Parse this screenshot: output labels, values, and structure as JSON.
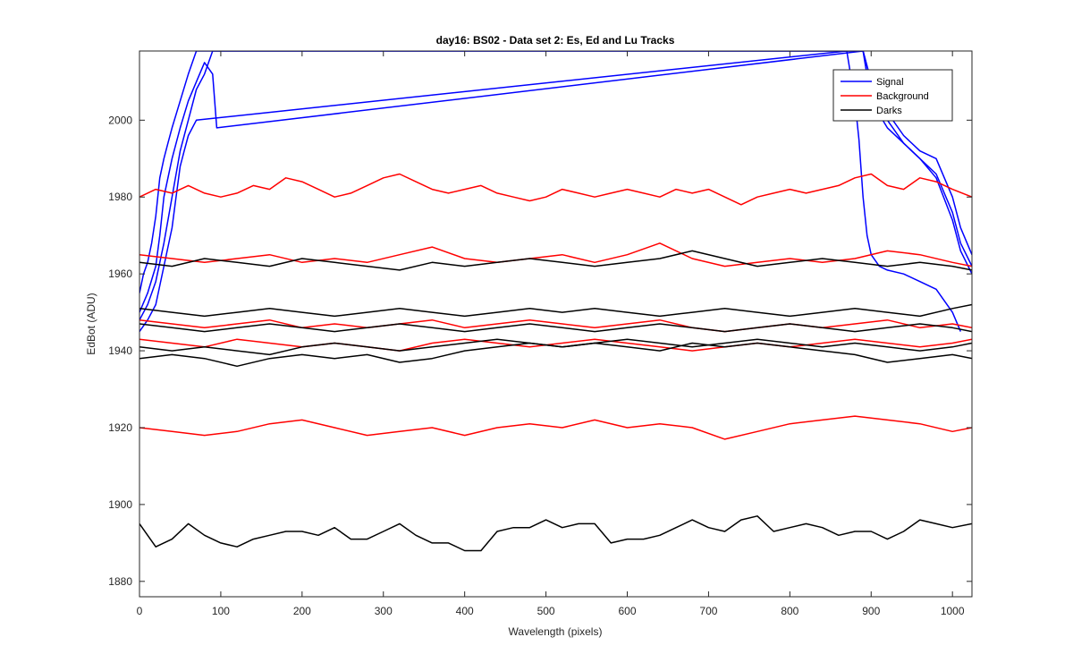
{
  "chart_data": {
    "type": "line",
    "title": "day16: BS02 - Data set 2: Es, Ed and Lu Tracks",
    "xlabel": "Wavelength (pixels)",
    "ylabel": "EdBot (ADU)",
    "xlim": [
      0,
      1024
    ],
    "ylim": [
      1876,
      2018
    ],
    "xticks": [
      0,
      100,
      200,
      300,
      400,
      500,
      600,
      700,
      800,
      900,
      1000
    ],
    "yticks": [
      1880,
      1900,
      1920,
      1940,
      1960,
      1980,
      2000
    ],
    "grid": false,
    "legend_position": "top-right",
    "legend": [
      {
        "label": "Signal",
        "color": "#0000ff"
      },
      {
        "label": "Background",
        "color": "#ff0000"
      },
      {
        "label": "Darks",
        "color": "#000000"
      }
    ],
    "series": [
      {
        "group": "Signal",
        "color": "#0000ff",
        "x": [
          0,
          5,
          10,
          15,
          20,
          25,
          30,
          35,
          40,
          50,
          60,
          70,
          80,
          90,
          100,
          150,
          870,
          880,
          890,
          900,
          920,
          940,
          960,
          980,
          1000,
          1010,
          1024
        ],
        "y": [
          1955,
          1960,
          1963,
          1968,
          1975,
          1985,
          1990,
          1994,
          1998,
          2005,
          2012,
          2018,
          2018,
          2018,
          2018,
          2018,
          2018,
          2018,
          2018,
          2010,
          2002,
          1996,
          1992,
          1990,
          1980,
          1972,
          1965
        ]
      },
      {
        "group": "Signal",
        "color": "#0000ff",
        "x": [
          0,
          10,
          20,
          25,
          30,
          40,
          50,
          60,
          70,
          80,
          90,
          95,
          890,
          900,
          920,
          940,
          960,
          980,
          1000,
          1010,
          1024
        ],
        "y": [
          1950,
          1955,
          1962,
          1970,
          1980,
          1990,
          1998,
          2005,
          2010,
          2015,
          2012,
          1998,
          2018,
          2005,
          1998,
          1994,
          1990,
          1986,
          1976,
          1968,
          1962
        ]
      },
      {
        "group": "Signal",
        "color": "#0000ff",
        "x": [
          0,
          10,
          20,
          30,
          40,
          50,
          60,
          70,
          80,
          90,
          100,
          890,
          900,
          920,
          940,
          960,
          980,
          1000,
          1010,
          1024
        ],
        "y": [
          1948,
          1952,
          1958,
          1968,
          1980,
          1992,
          2000,
          2008,
          2012,
          2018,
          2018,
          2018,
          2010,
          2000,
          1994,
          1990,
          1985,
          1974,
          1966,
          1960
        ]
      },
      {
        "group": "Signal",
        "color": "#0000ff",
        "x": [
          0,
          10,
          20,
          30,
          40,
          45,
          50,
          55,
          60,
          70,
          870,
          880,
          885,
          890,
          895,
          900,
          910,
          920,
          940,
          960,
          980,
          990,
          1000,
          1010
        ],
        "y": [
          1945,
          1948,
          1952,
          1962,
          1972,
          1980,
          1988,
          1992,
          1996,
          2000,
          2018,
          2005,
          1995,
          1980,
          1970,
          1965,
          1962,
          1961,
          1960,
          1958,
          1956,
          1953,
          1950,
          1945
        ]
      },
      {
        "group": "Background",
        "color": "#ff0000",
        "x": [
          0,
          20,
          40,
          60,
          80,
          100,
          120,
          140,
          160,
          180,
          200,
          220,
          240,
          260,
          280,
          300,
          320,
          340,
          360,
          380,
          400,
          420,
          440,
          460,
          480,
          500,
          520,
          540,
          560,
          580,
          600,
          620,
          640,
          660,
          680,
          700,
          720,
          740,
          760,
          780,
          800,
          820,
          840,
          860,
          880,
          900,
          920,
          940,
          960,
          980,
          1000,
          1024
        ],
        "y": [
          1980,
          1982,
          1981,
          1983,
          1981,
          1980,
          1981,
          1983,
          1982,
          1985,
          1984,
          1982,
          1980,
          1981,
          1983,
          1985,
          1986,
          1984,
          1982,
          1981,
          1982,
          1983,
          1981,
          1980,
          1979,
          1980,
          1982,
          1981,
          1980,
          1981,
          1982,
          1981,
          1980,
          1982,
          1981,
          1982,
          1980,
          1978,
          1980,
          1981,
          1982,
          1981,
          1982,
          1983,
          1985,
          1986,
          1983,
          1982,
          1985,
          1984,
          1982,
          1980
        ]
      },
      {
        "group": "Background",
        "color": "#ff0000",
        "x": [
          0,
          40,
          80,
          120,
          160,
          200,
          240,
          280,
          320,
          360,
          400,
          440,
          480,
          520,
          560,
          600,
          640,
          680,
          720,
          760,
          800,
          840,
          880,
          920,
          960,
          1000,
          1024
        ],
        "y": [
          1965,
          1964,
          1963,
          1964,
          1965,
          1963,
          1964,
          1963,
          1965,
          1967,
          1964,
          1963,
          1964,
          1965,
          1963,
          1965,
          1968,
          1964,
          1962,
          1963,
          1964,
          1963,
          1964,
          1966,
          1965,
          1963,
          1962
        ]
      },
      {
        "group": "Background",
        "color": "#ff0000",
        "x": [
          0,
          40,
          80,
          120,
          160,
          200,
          240,
          280,
          320,
          360,
          400,
          440,
          480,
          520,
          560,
          600,
          640,
          680,
          720,
          760,
          800,
          840,
          880,
          920,
          960,
          1000,
          1024
        ],
        "y": [
          1948,
          1947,
          1946,
          1947,
          1948,
          1946,
          1947,
          1946,
          1947,
          1948,
          1946,
          1947,
          1948,
          1947,
          1946,
          1947,
          1948,
          1946,
          1945,
          1946,
          1947,
          1946,
          1947,
          1948,
          1946,
          1947,
          1946
        ]
      },
      {
        "group": "Background",
        "color": "#ff0000",
        "x": [
          0,
          40,
          80,
          120,
          160,
          200,
          240,
          280,
          320,
          360,
          400,
          440,
          480,
          520,
          560,
          600,
          640,
          680,
          720,
          760,
          800,
          840,
          880,
          920,
          960,
          1000,
          1024
        ],
        "y": [
          1943,
          1942,
          1941,
          1943,
          1942,
          1941,
          1942,
          1941,
          1940,
          1942,
          1943,
          1942,
          1941,
          1942,
          1943,
          1942,
          1941,
          1940,
          1941,
          1942,
          1941,
          1942,
          1943,
          1942,
          1941,
          1942,
          1943
        ]
      },
      {
        "group": "Background",
        "color": "#ff0000",
        "x": [
          0,
          40,
          80,
          120,
          160,
          200,
          240,
          280,
          320,
          360,
          400,
          440,
          480,
          520,
          560,
          600,
          640,
          680,
          720,
          760,
          800,
          840,
          880,
          920,
          960,
          1000,
          1024
        ],
        "y": [
          1920,
          1919,
          1918,
          1919,
          1921,
          1922,
          1920,
          1918,
          1919,
          1920,
          1918,
          1920,
          1921,
          1920,
          1922,
          1920,
          1921,
          1920,
          1917,
          1919,
          1921,
          1922,
          1923,
          1922,
          1921,
          1919,
          1920
        ]
      },
      {
        "group": "Darks",
        "color": "#000000",
        "x": [
          0,
          40,
          80,
          120,
          160,
          200,
          240,
          280,
          320,
          360,
          400,
          440,
          480,
          520,
          560,
          600,
          640,
          680,
          720,
          760,
          800,
          840,
          880,
          920,
          960,
          1000,
          1024
        ],
        "y": [
          1963,
          1962,
          1964,
          1963,
          1962,
          1964,
          1963,
          1962,
          1961,
          1963,
          1962,
          1963,
          1964,
          1963,
          1962,
          1963,
          1964,
          1966,
          1964,
          1962,
          1963,
          1964,
          1963,
          1962,
          1963,
          1962,
          1961
        ]
      },
      {
        "group": "Darks",
        "color": "#000000",
        "x": [
          0,
          40,
          80,
          120,
          160,
          200,
          240,
          280,
          320,
          360,
          400,
          440,
          480,
          520,
          560,
          600,
          640,
          680,
          720,
          760,
          800,
          840,
          880,
          920,
          960,
          1000,
          1024
        ],
        "y": [
          1951,
          1950,
          1949,
          1950,
          1951,
          1950,
          1949,
          1950,
          1951,
          1950,
          1949,
          1950,
          1951,
          1950,
          1951,
          1950,
          1949,
          1950,
          1951,
          1950,
          1949,
          1950,
          1951,
          1950,
          1949,
          1951,
          1952
        ]
      },
      {
        "group": "Darks",
        "color": "#000000",
        "x": [
          0,
          40,
          80,
          120,
          160,
          200,
          240,
          280,
          320,
          360,
          400,
          440,
          480,
          520,
          560,
          600,
          640,
          680,
          720,
          760,
          800,
          840,
          880,
          920,
          960,
          1000,
          1024
        ],
        "y": [
          1947,
          1946,
          1945,
          1946,
          1947,
          1946,
          1945,
          1946,
          1947,
          1946,
          1945,
          1946,
          1947,
          1946,
          1945,
          1946,
          1947,
          1946,
          1945,
          1946,
          1947,
          1946,
          1945,
          1946,
          1947,
          1946,
          1945
        ]
      },
      {
        "group": "Darks",
        "color": "#000000",
        "x": [
          0,
          40,
          80,
          120,
          160,
          200,
          240,
          280,
          320,
          360,
          400,
          440,
          480,
          520,
          560,
          600,
          640,
          680,
          720,
          760,
          800,
          840,
          880,
          920,
          960,
          1000,
          1024
        ],
        "y": [
          1941,
          1940,
          1941,
          1940,
          1939,
          1941,
          1942,
          1941,
          1940,
          1941,
          1942,
          1943,
          1942,
          1941,
          1942,
          1943,
          1942,
          1941,
          1942,
          1943,
          1942,
          1941,
          1942,
          1941,
          1940,
          1941,
          1942
        ]
      },
      {
        "group": "Darks",
        "color": "#000000",
        "x": [
          0,
          40,
          80,
          120,
          160,
          200,
          240,
          280,
          320,
          360,
          400,
          440,
          480,
          520,
          560,
          600,
          640,
          680,
          720,
          760,
          800,
          840,
          880,
          920,
          960,
          1000,
          1024
        ],
        "y": [
          1938,
          1939,
          1938,
          1936,
          1938,
          1939,
          1938,
          1939,
          1937,
          1938,
          1940,
          1941,
          1942,
          1941,
          1942,
          1941,
          1940,
          1942,
          1941,
          1942,
          1941,
          1940,
          1939,
          1937,
          1938,
          1939,
          1938
        ]
      },
      {
        "group": "Darks",
        "color": "#000000",
        "x": [
          0,
          20,
          40,
          60,
          80,
          100,
          120,
          140,
          160,
          180,
          200,
          220,
          240,
          260,
          280,
          300,
          320,
          340,
          360,
          380,
          400,
          420,
          440,
          460,
          480,
          500,
          520,
          540,
          560,
          580,
          600,
          620,
          640,
          660,
          680,
          700,
          720,
          740,
          760,
          780,
          800,
          820,
          840,
          860,
          880,
          900,
          920,
          940,
          960,
          980,
          1000,
          1024
        ],
        "y": [
          1895,
          1889,
          1891,
          1895,
          1892,
          1890,
          1889,
          1891,
          1892,
          1893,
          1893,
          1892,
          1894,
          1891,
          1891,
          1893,
          1895,
          1892,
          1890,
          1890,
          1888,
          1888,
          1893,
          1894,
          1894,
          1896,
          1894,
          1895,
          1895,
          1890,
          1891,
          1891,
          1892,
          1894,
          1896,
          1894,
          1893,
          1896,
          1897,
          1893,
          1894,
          1895,
          1894,
          1892,
          1893,
          1893,
          1891,
          1893,
          1896,
          1895,
          1894,
          1895
        ]
      }
    ]
  }
}
